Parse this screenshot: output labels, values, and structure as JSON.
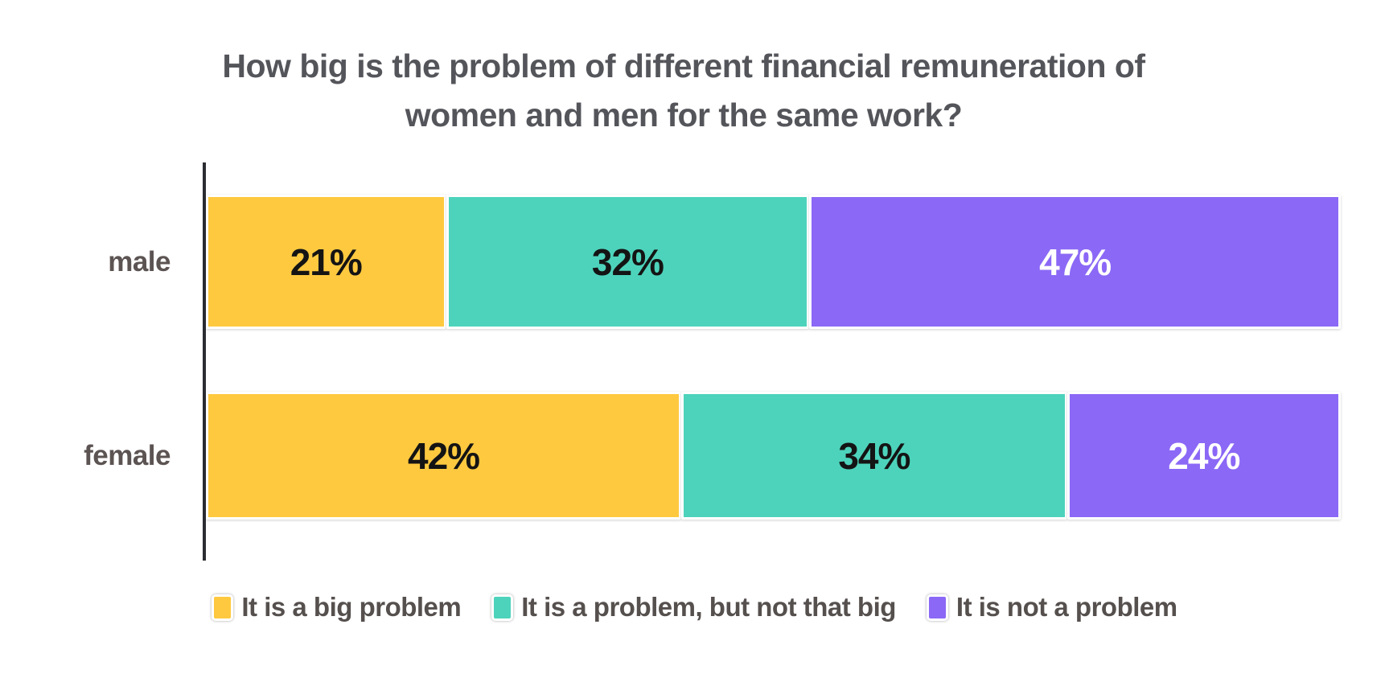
{
  "title_lines": [
    "How big is the problem of different financial remuneration of",
    "women and men for the same work?"
  ],
  "chart_data": {
    "type": "bar",
    "orientation": "horizontal",
    "stacked": true,
    "title": "How big is the problem of different financial remuneration of women and men for the same work?",
    "categories": [
      "male",
      "female"
    ],
    "series": [
      {
        "name": "It is a big problem",
        "color": "#FFC93F",
        "label_color": "#141414",
        "values": [
          21,
          42
        ]
      },
      {
        "name": "It is a problem, but not that big",
        "color": "#4DD3BB",
        "label_color": "#141414",
        "values": [
          32,
          34
        ]
      },
      {
        "name": "It is not a problem",
        "color": "#8B68F6",
        "label_color": "#FFFFFF",
        "values": [
          47,
          24
        ]
      }
    ],
    "value_suffix": "%",
    "xlim": [
      0,
      100
    ],
    "grid": false,
    "legend_position": "bottom",
    "value_labels": "inside-center"
  },
  "colors": {
    "background": "#FFFFFF",
    "title_text": "#54555A",
    "category_label_text": "#5C5453",
    "legend_text": "#55504E",
    "axis_line": "#2C2D33",
    "segment_border": "#FFFFFF"
  }
}
